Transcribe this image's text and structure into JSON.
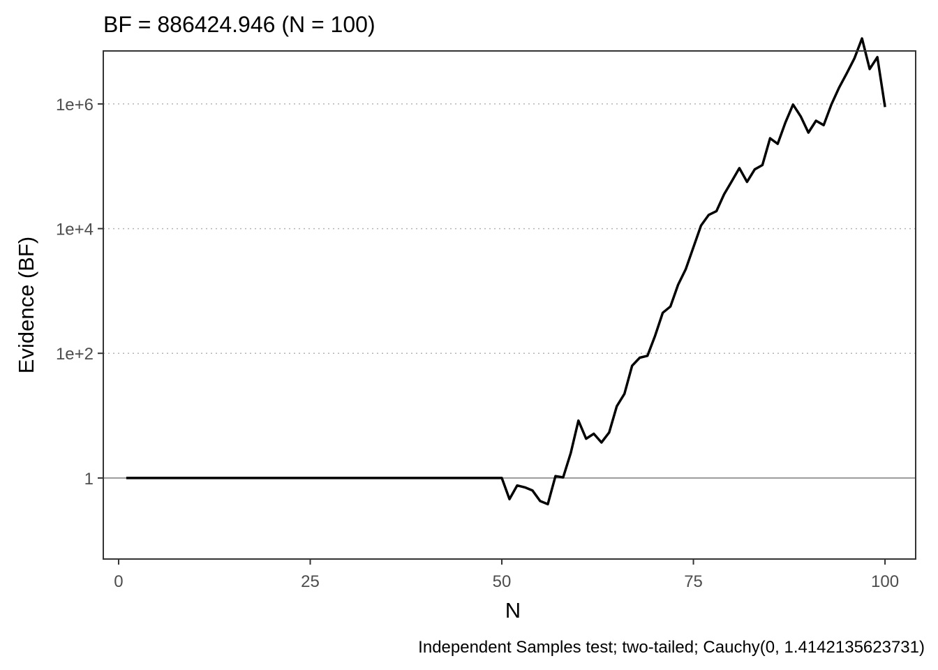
{
  "chart_data": {
    "type": "line",
    "title": "BF = 886424.946 (N = 100)",
    "xlabel": "N",
    "ylabel": "Evidence (BF)",
    "caption": "Independent Samples test; two-tailed; Cauchy(0, 1.4142135623731)",
    "y_scale": "log10",
    "xlim": [
      -2,
      104
    ],
    "ylim_log10": [
      -1.3,
      6.85
    ],
    "x_ticks": [
      0,
      25,
      50,
      75,
      100
    ],
    "x_tick_labels": [
      "0",
      "25",
      "50",
      "75",
      "100"
    ],
    "y_ticks_log10": [
      0,
      2,
      4,
      6
    ],
    "y_tick_labels": [
      "1",
      "1e+2",
      "1e+4",
      "1e+6"
    ],
    "grid": "dotted horizontal at 1e+2, 1e+4, 1e+6; solid reference line at 1",
    "line_color": "#000000",
    "series": [
      {
        "x": [
          1,
          2,
          3,
          4,
          5,
          6,
          7,
          8,
          9,
          10,
          11,
          12,
          13,
          14,
          15,
          16,
          17,
          18,
          19,
          20,
          21,
          22,
          23,
          24,
          25,
          26,
          27,
          28,
          29,
          30,
          31,
          32,
          33,
          34,
          35,
          36,
          37,
          38,
          39,
          40,
          41,
          42,
          43,
          44,
          45,
          46,
          47,
          48,
          49,
          50,
          51,
          52,
          53,
          54,
          55,
          56,
          57,
          58,
          59,
          60,
          61,
          62,
          63,
          64,
          65,
          66,
          67,
          68,
          69,
          70,
          71,
          72,
          73,
          74,
          75,
          76,
          77,
          78,
          79,
          80,
          81,
          82,
          83,
          84,
          85,
          86,
          87,
          88,
          89,
          90,
          91,
          92,
          93,
          94,
          95,
          96,
          97,
          98,
          99,
          100
        ],
        "log10_bf": [
          0,
          0,
          0,
          0,
          0,
          0,
          0,
          0,
          0,
          0,
          0,
          0,
          0,
          0,
          0,
          0,
          0,
          0,
          0,
          0,
          0,
          0,
          0,
          0,
          0,
          0,
          0,
          0,
          0,
          0,
          0,
          0,
          0,
          0,
          0,
          0,
          0,
          0,
          0,
          0,
          0,
          0,
          0,
          0,
          0,
          0,
          0,
          0,
          0,
          0,
          -0.34,
          -0.12,
          -0.15,
          -0.2,
          -0.37,
          -0.42,
          0.03,
          0.01,
          0.4,
          0.92,
          0.63,
          0.71,
          0.57,
          0.73,
          1.15,
          1.35,
          1.8,
          1.93,
          1.96,
          2.28,
          2.65,
          2.75,
          3.1,
          3.35,
          3.7,
          4.05,
          4.22,
          4.28,
          4.55,
          4.76,
          4.97,
          4.75,
          4.95,
          5.02,
          5.45,
          5.36,
          5.7,
          5.99,
          5.8,
          5.54,
          5.73,
          5.66,
          5.99,
          6.26,
          6.49,
          6.73,
          7.05,
          6.56,
          6.75,
          5.95
        ]
      }
    ]
  }
}
